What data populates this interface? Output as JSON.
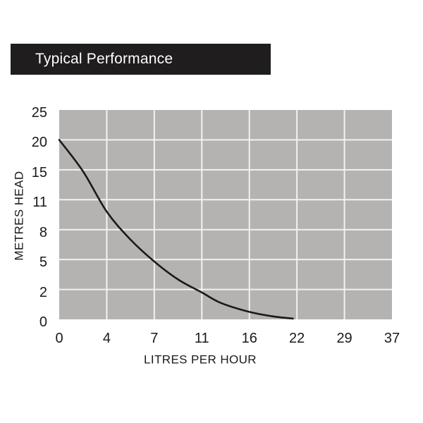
{
  "title_bar": {
    "title": "Typical Performance"
  },
  "chart_data": {
    "type": "line",
    "title": "Typical Performance",
    "xlabel": "LITRES PER HOUR",
    "ylabel": "METRES HEAD",
    "x_tick_values": [
      0,
      4,
      7,
      11,
      16,
      22,
      29,
      37
    ],
    "y_tick_values": [
      0,
      2,
      5,
      8,
      11,
      15,
      20,
      25
    ],
    "x_range": [
      0,
      37
    ],
    "y_range": [
      0,
      25
    ],
    "axis_note": "tick marks are evenly spaced in pixels; value scales are non-linear",
    "grid": true,
    "legend": false,
    "series": [
      {
        "name": "performance curve",
        "points": [
          [
            0,
            20
          ],
          [
            2,
            14.8
          ],
          [
            4,
            9.8
          ],
          [
            5.5,
            7
          ],
          [
            7,
            4.8
          ],
          [
            9,
            3
          ],
          [
            11,
            1.8
          ],
          [
            13,
            1.1
          ],
          [
            16,
            0.5
          ],
          [
            19,
            0.2
          ],
          [
            21.5,
            0.05
          ]
        ]
      }
    ]
  },
  "colors": {
    "page_bg": "#ffffff",
    "title_bar_bg": "#1f1d1e",
    "title_text": "#ffffff",
    "plot_bg": "#b4b3b1",
    "grid_line": "#f2f2f1",
    "curve": "#1a1a1a",
    "text": "#1a1a1a"
  }
}
